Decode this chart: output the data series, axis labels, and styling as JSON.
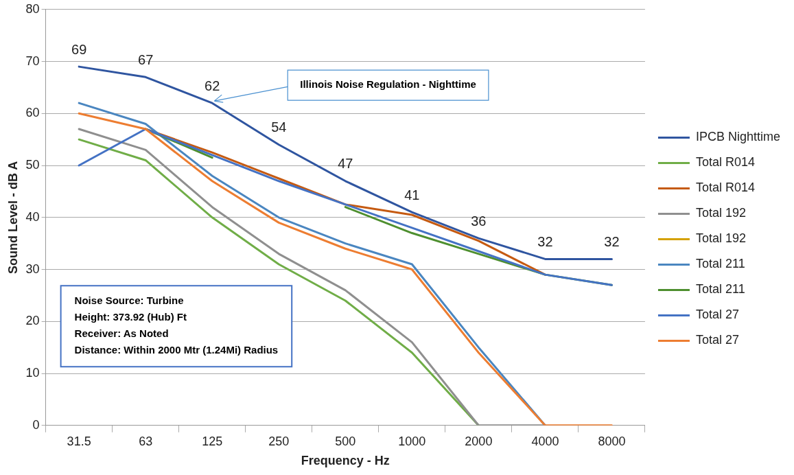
{
  "chart_data": {
    "type": "line",
    "xlabel": "Frequency - Hz",
    "ylabel": "Sound Level - dB A",
    "categories": [
      "31.5",
      "63",
      "125",
      "250",
      "500",
      "1000",
      "2000",
      "4000",
      "8000"
    ],
    "ylim": [
      0,
      80
    ],
    "yticks": [
      0,
      10,
      20,
      30,
      40,
      50,
      60,
      70,
      80
    ],
    "grid": "y",
    "legend": "right",
    "marker": "none",
    "line_style": "solid",
    "series": [
      {
        "name": "IPCB Nighttime",
        "color": "#2f55a0",
        "values": [
          69,
          67,
          62,
          54,
          47,
          41,
          36,
          32,
          32
        ],
        "value_labels": [
          "69",
          "67",
          "62",
          "54",
          "47",
          "41",
          "36",
          "32",
          "32"
        ]
      },
      {
        "name": "Total R014",
        "color": "#70ad47",
        "values": [
          55,
          51,
          40,
          31,
          24,
          14,
          0,
          null,
          null
        ]
      },
      {
        "name": "Total R014",
        "color": "#c55a11",
        "values": [
          null,
          57,
          52.5,
          47.5,
          42.5,
          40.5,
          35.5,
          29,
          null
        ]
      },
      {
        "name": "Total 192",
        "color": "#8f8f8f",
        "values": [
          57,
          53,
          42,
          33,
          26,
          16,
          0,
          0,
          null
        ]
      },
      {
        "name": "Total 192",
        "color": "#d4a000",
        "values": [
          null,
          null,
          null,
          null,
          null,
          null,
          null,
          null,
          null
        ]
      },
      {
        "name": "Total 211",
        "color": "#4a86c0",
        "values": [
          62,
          58,
          48,
          40,
          35,
          31,
          15,
          0,
          null
        ]
      },
      {
        "name": "Total 211",
        "color": "#4e8f2f",
        "values": [
          null,
          57,
          51.5,
          null,
          42,
          37,
          33,
          29,
          27
        ]
      },
      {
        "name": "Total 27",
        "color": "#4472c4",
        "values": [
          50,
          57,
          52,
          47,
          42.5,
          38,
          33.5,
          29,
          27
        ]
      },
      {
        "name": "Total 27",
        "color": "#ed7d31",
        "values": [
          60,
          57,
          47,
          39,
          34,
          30,
          14,
          0,
          0
        ]
      }
    ],
    "annotations": [
      {
        "text": "Illinois Noise Regulation - Nighttime",
        "x": "125",
        "y": 62
      },
      "Noise Source: Turbine\nHeight: 373.92 (Hub) Ft\nReceiver: As Noted\nDistance: Within 2000 Mtr (1.24Mi) Radius"
    ]
  }
}
